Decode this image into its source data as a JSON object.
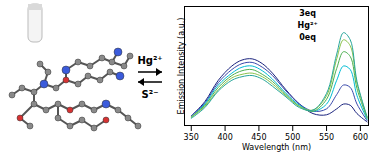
{
  "chart_data": {
    "type": "line",
    "x_label": "Wavelength (nm)",
    "y_label": "Emission Intensity (a.u.)",
    "xlim": [
      340,
      612
    ],
    "xticks": [
      350,
      400,
      450,
      500,
      550,
      600
    ],
    "ylim": [
      0,
      100
    ],
    "tick_labels": "x",
    "x": [
      350,
      370,
      390,
      410,
      425,
      440,
      455,
      470,
      490,
      510,
      530,
      550,
      565,
      575,
      585,
      595,
      610
    ],
    "series": [
      {
        "color": "#1a237e",
        "values": [
          8,
          20,
          38,
          50,
          55,
          56,
          52,
          44,
          30,
          18,
          10,
          9,
          14,
          18,
          17,
          10,
          3
        ]
      },
      {
        "color": "#3949ab",
        "values": [
          8,
          19,
          36,
          47,
          52,
          53,
          49,
          42,
          29,
          18,
          12,
          14,
          26,
          34,
          32,
          18,
          4
        ]
      },
      {
        "color": "#00bcd4",
        "values": [
          7,
          18,
          34,
          44,
          49,
          50,
          46,
          39,
          27,
          17,
          12,
          18,
          38,
          50,
          47,
          25,
          5
        ]
      },
      {
        "color": "#4caf50",
        "values": [
          7,
          17,
          32,
          42,
          46,
          47,
          43,
          37,
          26,
          16,
          12,
          22,
          48,
          62,
          58,
          31,
          6
        ]
      },
      {
        "color": "#8bc34a",
        "values": [
          7,
          16,
          30,
          40,
          43,
          44,
          41,
          35,
          25,
          16,
          13,
          25,
          56,
          72,
          67,
          35,
          7
        ]
      },
      {
        "color": "#26a69a",
        "values": [
          6,
          15,
          29,
          38,
          41,
          42,
          39,
          33,
          24,
          15,
          13,
          27,
          60,
          78,
          72,
          37,
          7
        ]
      }
    ],
    "annotations": [
      {
        "text": "3eq",
        "x": 522,
        "y": 94
      },
      {
        "text": "Hg²⁺",
        "x": 522,
        "y": 84
      },
      {
        "text": "0eq",
        "x": 522,
        "y": 74
      }
    ]
  },
  "scheme": {
    "forward_label": "Hg²⁺",
    "reverse_label": "S²⁻"
  }
}
